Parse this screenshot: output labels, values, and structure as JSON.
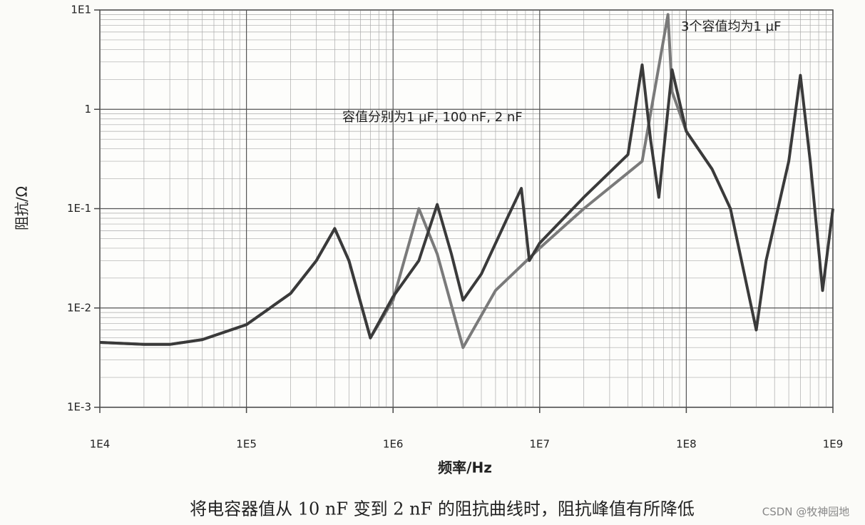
{
  "chart_data": {
    "type": "line",
    "x_label": "频率/Hz",
    "y_label": "阻抗/Ω",
    "caption": "将电容器值从 10 nF 变到 2 nF 的阻抗曲线时，阻抗峰值有所降低",
    "watermark": "CSDN @牧神园地",
    "xscale": "log",
    "yscale": "log",
    "grid": true,
    "xlim": [
      10000,
      1000000000
    ],
    "ylim": [
      0.001,
      10
    ],
    "xticks": [
      {
        "value": 10000,
        "label": "1E4"
      },
      {
        "value": 100000,
        "label": "1E5"
      },
      {
        "value": 1000000,
        "label": "1E6"
      },
      {
        "value": 10000000,
        "label": "1E7"
      },
      {
        "value": 100000000,
        "label": "1E8"
      },
      {
        "value": 1000000000,
        "label": "1E9"
      }
    ],
    "yticks": [
      {
        "value": 0.001,
        "label": "1E-3"
      },
      {
        "value": 0.01,
        "label": "1E-2"
      },
      {
        "value": 0.1,
        "label": "1E-1"
      },
      1,
      {
        "value": 10,
        "label": "1E1"
      }
    ],
    "series": [
      {
        "name": "容值分别为1 µF, 100 nF, 2 nF",
        "color": "#3a3a3a",
        "x": [
          10000,
          20000,
          30000,
          50000,
          100000,
          200000,
          300000,
          400000,
          500000,
          700000,
          1000000,
          1500000,
          2000000,
          2500000,
          3000000,
          4000000,
          6000000,
          7500000,
          8500000,
          10000000,
          20000000,
          40000000,
          50000000,
          57000000,
          65000000,
          80000000,
          100000000,
          150000000,
          200000000,
          300000000,
          350000000,
          500000000,
          600000000,
          700000000,
          850000000,
          1000000000
        ],
        "values": [
          0.0045,
          0.0043,
          0.0043,
          0.0048,
          0.0068,
          0.014,
          0.03,
          0.063,
          0.03,
          0.005,
          0.013,
          0.03,
          0.11,
          0.035,
          0.012,
          0.022,
          0.08,
          0.16,
          0.03,
          0.045,
          0.13,
          0.35,
          2.8,
          0.5,
          0.13,
          2.5,
          0.6,
          0.25,
          0.1,
          0.006,
          0.03,
          0.3,
          2.2,
          0.3,
          0.015,
          0.1
        ]
      },
      {
        "name": "3个容值均为1 µF",
        "color": "#7a7a7a",
        "x": [
          10000,
          20000,
          30000,
          50000,
          100000,
          200000,
          300000,
          400000,
          500000,
          700000,
          1000000,
          1500000,
          2000000,
          3000000,
          5000000,
          10000000,
          20000000,
          50000000,
          75000000,
          80000000,
          100000000,
          150000000
        ],
        "values": [
          0.0045,
          0.0043,
          0.0043,
          0.0048,
          0.0068,
          0.014,
          0.03,
          0.063,
          0.03,
          0.005,
          0.012,
          0.1,
          0.035,
          0.004,
          0.015,
          0.04,
          0.1,
          0.3,
          9,
          1.5,
          0.6,
          0.25
        ]
      }
    ]
  }
}
